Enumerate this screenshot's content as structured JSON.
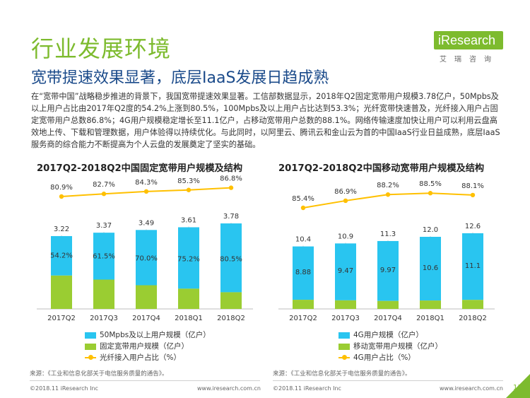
{
  "header": {
    "section_title": "行业发展环境",
    "slide_title": "宽带提速效果显著，底层IaaS发展日趋成熟",
    "logo_text": "iResearch",
    "logo_sub": "艾瑞咨询"
  },
  "intro": "在“宽带中国”战略稳步推进的背景下，我国宽带提速效果显著。工信部数据显示，2018年Q2固定宽带用户规模3.78亿户，50Mpbs及以上用户占比由2017年Q2度的54.2%上涨到80.5%，100Mpbs及以上用户占比达到53.3%；光纤宽带快速普及，光纤接入用户占固定宽带用户总数86.8%；4G用户规模稳定增长至11.1亿户，占移动宽带用户总数的88.1%。网络传输速度加快让用户可以利用云盘高效地上传、下载和管理数据，用户体验得以持续优化。与此同时，以阿里云、腾讯云和金山云为首的中国IaaS行业日益成熟，底层IaaS服务商的综合能力不断提高为个人云盘的发展奠定了坚实的基础。",
  "chart_data": [
    {
      "type": "bar",
      "title": "2017Q2-2018Q2中国固定宽带用户规模及结构",
      "categories": [
        "2017Q2",
        "2017Q3",
        "2017Q4",
        "2018Q1",
        "2018Q2"
      ],
      "series": [
        {
          "name": "50Mpbs及以上用户规模（亿户）",
          "type": "bar",
          "color": "#29c5f0",
          "values": [
            1.745,
            2.073,
            2.443,
            2.715,
            3.043
          ],
          "labels": [
            "54.2%",
            "61.5%",
            "70.0%",
            "75.2%",
            "80.5%"
          ]
        },
        {
          "name": "固定宽带用户规模（亿户）",
          "type": "bar",
          "color": "#9acd32",
          "values": [
            3.22,
            3.37,
            3.49,
            3.61,
            3.78
          ],
          "labels": [
            "3.22",
            "3.37",
            "3.49",
            "3.61",
            "3.78"
          ]
        },
        {
          "name": "光纤接入用户占比（%）",
          "type": "line",
          "color": "#ffc000",
          "values": [
            80.9,
            82.7,
            84.3,
            85.3,
            86.8
          ],
          "labels": [
            "80.9%",
            "82.7%",
            "84.3%",
            "85.3%",
            "86.8%"
          ]
        }
      ]
    },
    {
      "type": "bar",
      "title": "2017Q2-2018Q2中国移动宽带用户规模及结构",
      "categories": [
        "2017Q2",
        "2017Q3",
        "2017Q4",
        "2018Q1",
        "2018Q2"
      ],
      "series": [
        {
          "name": "4G用户规模（亿户）",
          "type": "bar",
          "color": "#29c5f0",
          "values": [
            8.88,
            9.47,
            9.97,
            10.6,
            11.1
          ],
          "labels": [
            "8.88",
            "9.47",
            "9.97",
            "10.6",
            "11.1"
          ]
        },
        {
          "name": "移动宽带用户规模（亿户）",
          "type": "bar",
          "color": "#9acd32",
          "values": [
            10.4,
            10.9,
            11.3,
            12.0,
            12.6
          ],
          "labels": [
            "10.4",
            "10.9",
            "11.3",
            "12.0",
            "12.6"
          ]
        },
        {
          "name": "4G用户占比（%）",
          "type": "line",
          "color": "#ffc000",
          "values": [
            85.4,
            86.9,
            88.2,
            88.5,
            88.1
          ],
          "labels": [
            "85.4%",
            "86.9%",
            "88.2%",
            "88.5%",
            "88.1%"
          ]
        }
      ]
    }
  ],
  "sources": {
    "left": "来源：《工业和信息化部关于电信服务质量的通告》。",
    "right": "来源：《工业和信息化部关于电信服务质量的通告》。"
  },
  "footer": {
    "copyright_left": "©2018.11 iResearch Inc",
    "site_left": "www.iresearch.com.cn",
    "copyright_right": "©2018.11 iResearch Inc",
    "site_right": "www.iresearch.com.cn",
    "page_number": "11"
  },
  "colors": {
    "brand_green": "#7dbb2e",
    "title_blue": "#1a4a8a",
    "bar_blue": "#29c5f0",
    "bar_green": "#9acd32",
    "line_yellow": "#ffc000"
  }
}
